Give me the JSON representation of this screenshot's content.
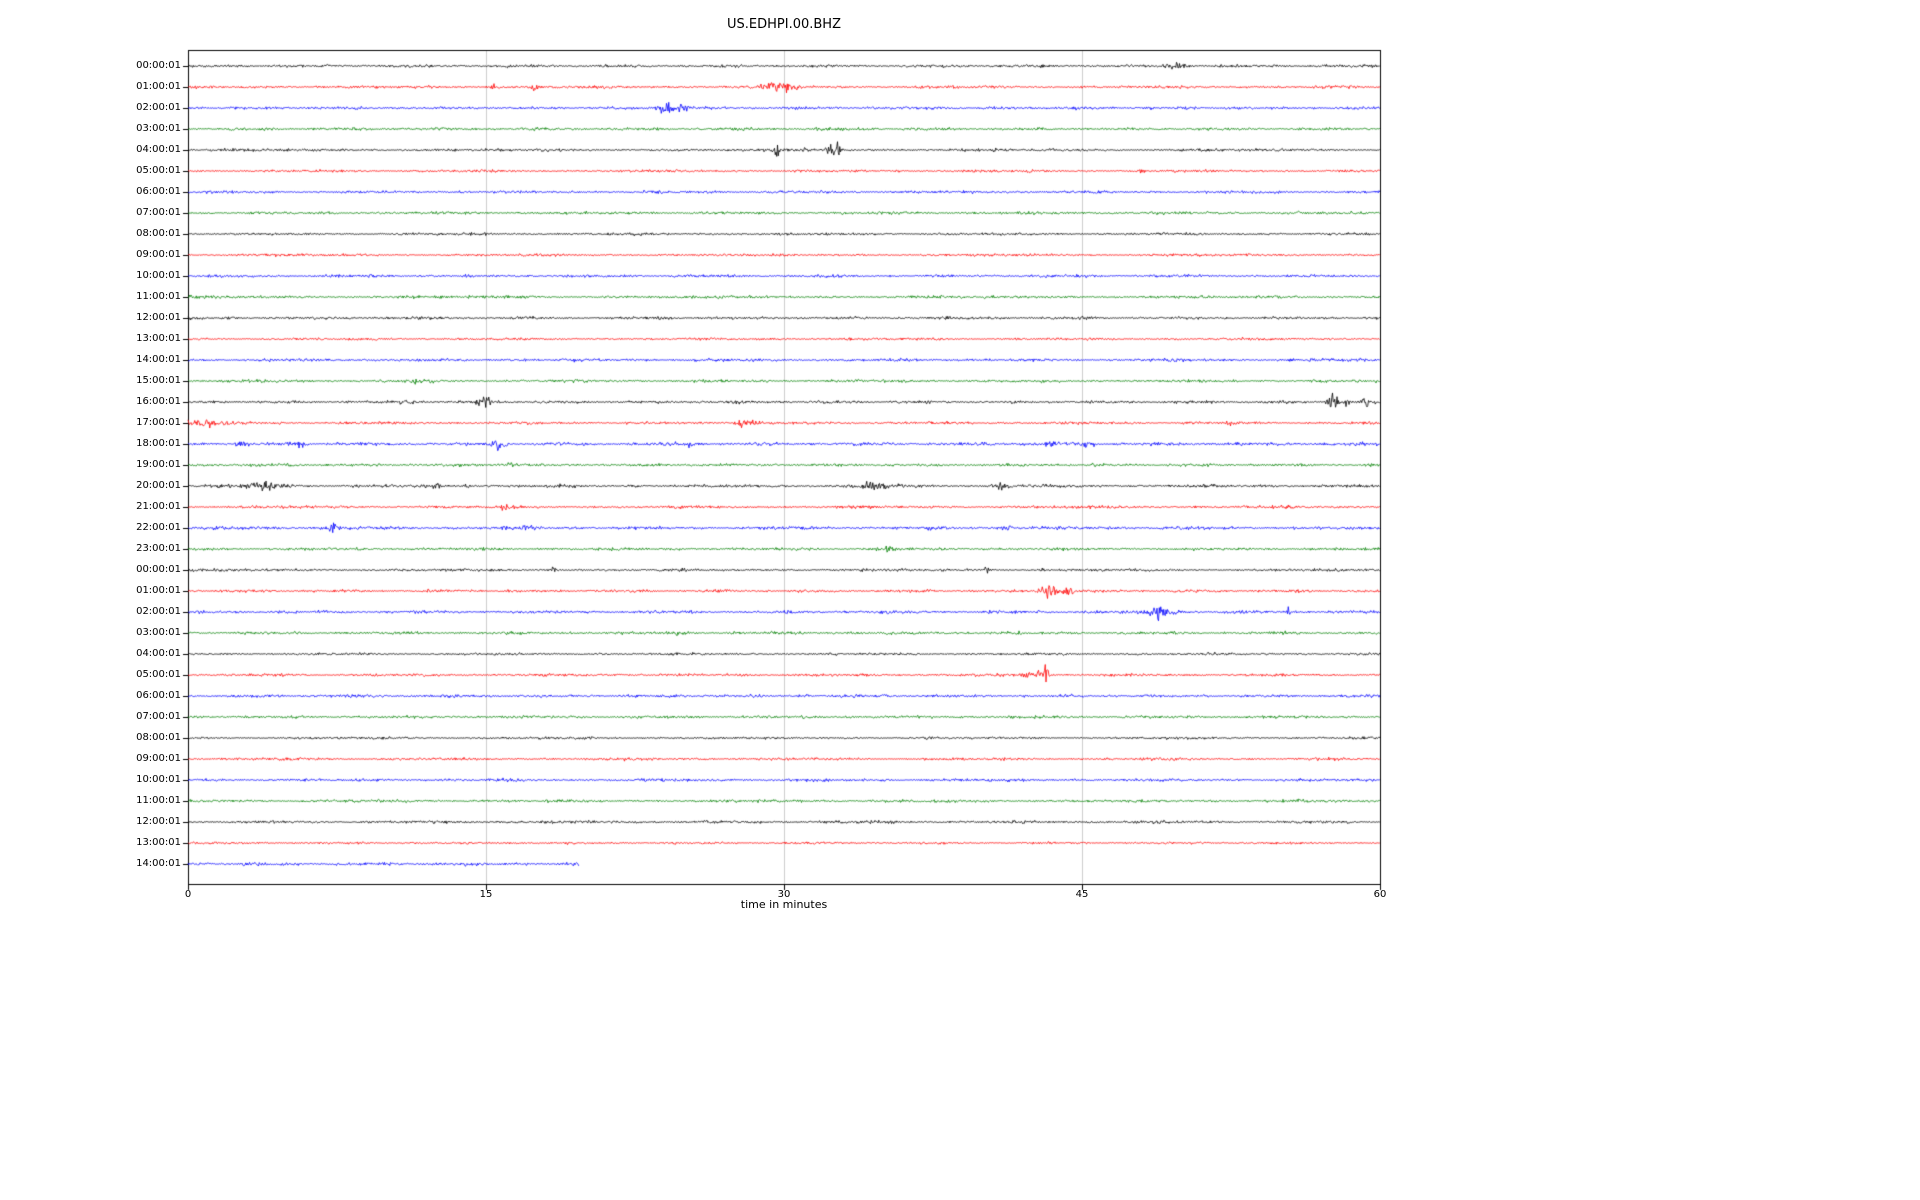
{
  "title": "US.EDHPI.00.BHZ",
  "chart_data": {
    "type": "line",
    "subtype": "helicorder-day-plot",
    "title": "US.EDHPI.00.BHZ",
    "xlabel": "time in minutes",
    "ylabel": "",
    "xlim": [
      0,
      60
    ],
    "x_ticks": [
      0,
      15,
      30,
      45,
      60
    ],
    "grid": "vertical-gridlines-at-15-30-45",
    "minutes_per_row": 60,
    "trace_color_cycle": [
      "#000000",
      "#ff0000",
      "#0000ff",
      "#008000"
    ],
    "grid_color": "#cccccc",
    "rows": [
      {
        "label": "00:00:01",
        "color": "#000000",
        "end_min": 60,
        "noise": 1.0,
        "events": [
          {
            "t": 49.7,
            "dur": 0.5,
            "amp": 2.5
          }
        ]
      },
      {
        "label": "01:00:01",
        "color": "#ff0000",
        "end_min": 60,
        "noise": 1.0,
        "events": [
          {
            "t": 15.4,
            "dur": 0.25,
            "amp": 2
          },
          {
            "t": 17.4,
            "dur": 0.25,
            "amp": 2
          },
          {
            "t": 29.8,
            "dur": 0.7,
            "amp": 4.5
          }
        ]
      },
      {
        "label": "02:00:01",
        "color": "#0000ff",
        "end_min": 60,
        "noise": 1.0,
        "events": [
          {
            "t": 24.0,
            "dur": 0.4,
            "amp": 4.5
          },
          {
            "t": 24.9,
            "dur": 0.3,
            "amp": 3
          },
          {
            "t": 37.6,
            "dur": 0.4,
            "amp": 1.5
          }
        ]
      },
      {
        "label": "03:00:01",
        "color": "#008000",
        "end_min": 60,
        "noise": 1.0,
        "events": []
      },
      {
        "label": "04:00:01",
        "color": "#000000",
        "end_min": 60,
        "noise": 1.0,
        "events": [
          {
            "t": 29.6,
            "dur": 0.12,
            "amp": 7
          },
          {
            "t": 31.0,
            "dur": 0.1,
            "amp": 3
          },
          {
            "t": 32.3,
            "dur": 0.18,
            "amp": 12
          },
          {
            "t": 32.7,
            "dur": 0.15,
            "amp": 9
          }
        ]
      },
      {
        "label": "05:00:01",
        "color": "#ff0000",
        "end_min": 60,
        "noise": 0.9,
        "events": [
          {
            "t": 48.0,
            "dur": 0.2,
            "amp": 1.5
          }
        ]
      },
      {
        "label": "06:00:01",
        "color": "#0000ff",
        "end_min": 60,
        "noise": 1.0,
        "events": []
      },
      {
        "label": "07:00:01",
        "color": "#008000",
        "end_min": 60,
        "noise": 1.0,
        "events": []
      },
      {
        "label": "08:00:01",
        "color": "#000000",
        "end_min": 60,
        "noise": 0.9,
        "events": []
      },
      {
        "label": "09:00:01",
        "color": "#ff0000",
        "end_min": 60,
        "noise": 0.9,
        "events": []
      },
      {
        "label": "10:00:01",
        "color": "#0000ff",
        "end_min": 60,
        "noise": 1.0,
        "events": []
      },
      {
        "label": "11:00:01",
        "color": "#008000",
        "end_min": 60,
        "noise": 1.0,
        "events": []
      },
      {
        "label": "12:00:01",
        "color": "#000000",
        "end_min": 60,
        "noise": 1.0,
        "events": []
      },
      {
        "label": "13:00:01",
        "color": "#ff0000",
        "end_min": 60,
        "noise": 0.9,
        "events": []
      },
      {
        "label": "14:00:01",
        "color": "#0000ff",
        "end_min": 60,
        "noise": 1.1,
        "events": []
      },
      {
        "label": "15:00:01",
        "color": "#008000",
        "end_min": 60,
        "noise": 1.0,
        "events": [
          {
            "t": 11.5,
            "dur": 0.8,
            "amp": 1
          }
        ]
      },
      {
        "label": "16:00:01",
        "color": "#000000",
        "end_min": 60,
        "noise": 1.0,
        "events": [
          {
            "t": 11.0,
            "dur": 0.3,
            "amp": 2
          },
          {
            "t": 14.9,
            "dur": 0.4,
            "amp": 4.5
          },
          {
            "t": 57.6,
            "dur": 0.25,
            "amp": 9
          },
          {
            "t": 58.3,
            "dur": 0.2,
            "amp": 4
          },
          {
            "t": 59.2,
            "dur": 0.3,
            "amp": 4
          }
        ]
      },
      {
        "label": "17:00:01",
        "color": "#ff0000",
        "end_min": 60,
        "noise": 1.0,
        "events": [
          {
            "t": 0.6,
            "dur": 1.2,
            "amp": 2.5
          },
          {
            "t": 28.0,
            "dur": 0.5,
            "amp": 4.5
          },
          {
            "t": 52.3,
            "dur": 0.3,
            "amp": 2
          }
        ]
      },
      {
        "label": "18:00:01",
        "color": "#0000ff",
        "end_min": 60,
        "noise": 1.2,
        "events": [
          {
            "t": 2.6,
            "dur": 0.3,
            "amp": 2.5
          },
          {
            "t": 5.6,
            "dur": 0.3,
            "amp": 2.5
          },
          {
            "t": 15.6,
            "dur": 0.35,
            "amp": 3.5
          },
          {
            "t": 25.4,
            "dur": 0.3,
            "amp": 3
          },
          {
            "t": 43.3,
            "dur": 0.3,
            "amp": 3
          },
          {
            "t": 45.3,
            "dur": 0.3,
            "amp": 2.5
          }
        ]
      },
      {
        "label": "19:00:01",
        "color": "#008000",
        "end_min": 60,
        "noise": 1.0,
        "events": [
          {
            "t": 16.2,
            "dur": 0.4,
            "amp": 2
          }
        ]
      },
      {
        "label": "20:00:01",
        "color": "#000000",
        "end_min": 60,
        "noise": 1.1,
        "events": [
          {
            "t": 3.8,
            "dur": 1.0,
            "amp": 2.5
          },
          {
            "t": 12.5,
            "dur": 0.12,
            "amp": 4
          },
          {
            "t": 14.0,
            "dur": 0.12,
            "amp": 3
          },
          {
            "t": 34.6,
            "dur": 0.7,
            "amp": 3
          },
          {
            "t": 40.9,
            "dur": 0.4,
            "amp": 2.5
          }
        ]
      },
      {
        "label": "21:00:01",
        "color": "#ff0000",
        "end_min": 60,
        "noise": 1.0,
        "events": [
          {
            "t": 16.0,
            "dur": 0.3,
            "amp": 1.5
          }
        ]
      },
      {
        "label": "22:00:01",
        "color": "#0000ff",
        "end_min": 60,
        "noise": 1.15,
        "events": [
          {
            "t": 7.2,
            "dur": 0.3,
            "amp": 3
          },
          {
            "t": 17.2,
            "dur": 0.4,
            "amp": 2
          },
          {
            "t": 41.2,
            "dur": 0.3,
            "amp": 3.5
          }
        ]
      },
      {
        "label": "23:00:01",
        "color": "#008000",
        "end_min": 60,
        "noise": 1.0,
        "events": [
          {
            "t": 35.2,
            "dur": 0.4,
            "amp": 1.5
          }
        ]
      },
      {
        "label": "00:00:01",
        "color": "#000000",
        "end_min": 60,
        "noise": 0.95,
        "events": [
          {
            "t": 18.4,
            "dur": 0.2,
            "amp": 2
          },
          {
            "t": 40.2,
            "dur": 0.15,
            "amp": 2.5
          },
          {
            "t": 43.0,
            "dur": 0.2,
            "amp": 1.5
          }
        ]
      },
      {
        "label": "01:00:01",
        "color": "#ff0000",
        "end_min": 60,
        "noise": 1.0,
        "events": [
          {
            "t": 43.3,
            "dur": 0.4,
            "amp": 6
          },
          {
            "t": 44.3,
            "dur": 0.3,
            "amp": 4.5
          }
        ]
      },
      {
        "label": "02:00:01",
        "color": "#0000ff",
        "end_min": 60,
        "noise": 1.1,
        "events": [
          {
            "t": 48.6,
            "dur": 0.25,
            "amp": 6
          },
          {
            "t": 49.0,
            "dur": 0.3,
            "amp": 5
          },
          {
            "t": 49.6,
            "dur": 0.4,
            "amp": 3
          },
          {
            "t": 55.4,
            "dur": 0.1,
            "amp": 6
          }
        ]
      },
      {
        "label": "03:00:01",
        "color": "#008000",
        "end_min": 60,
        "noise": 1.0,
        "events": [
          {
            "t": 24.8,
            "dur": 0.4,
            "amp": 1.5
          }
        ]
      },
      {
        "label": "04:00:01",
        "color": "#000000",
        "end_min": 60,
        "noise": 0.85,
        "events": []
      },
      {
        "label": "05:00:01",
        "color": "#ff0000",
        "end_min": 60,
        "noise": 0.95,
        "events": [
          {
            "t": 42.6,
            "dur": 0.45,
            "amp": 4.5
          },
          {
            "t": 43.2,
            "dur": 0.12,
            "amp": 13
          }
        ]
      },
      {
        "label": "06:00:01",
        "color": "#0000ff",
        "end_min": 60,
        "noise": 1.05,
        "events": [
          {
            "t": 30.9,
            "dur": 0.3,
            "amp": 1.5
          }
        ]
      },
      {
        "label": "07:00:01",
        "color": "#008000",
        "end_min": 60,
        "noise": 1.0,
        "events": []
      },
      {
        "label": "08:00:01",
        "color": "#000000",
        "end_min": 60,
        "noise": 0.85,
        "events": []
      },
      {
        "label": "09:00:01",
        "color": "#ff0000",
        "end_min": 60,
        "noise": 0.95,
        "events": []
      },
      {
        "label": "10:00:01",
        "color": "#0000ff",
        "end_min": 60,
        "noise": 1.05,
        "events": []
      },
      {
        "label": "11:00:01",
        "color": "#008000",
        "end_min": 60,
        "noise": 1.0,
        "events": []
      },
      {
        "label": "12:00:01",
        "color": "#000000",
        "end_min": 60,
        "noise": 1.0,
        "events": []
      },
      {
        "label": "13:00:01",
        "color": "#ff0000",
        "end_min": 60,
        "noise": 0.8,
        "events": []
      },
      {
        "label": "14:00:01",
        "color": "#0000ff",
        "end_min": 19.7,
        "noise": 1.15,
        "events": []
      }
    ]
  }
}
